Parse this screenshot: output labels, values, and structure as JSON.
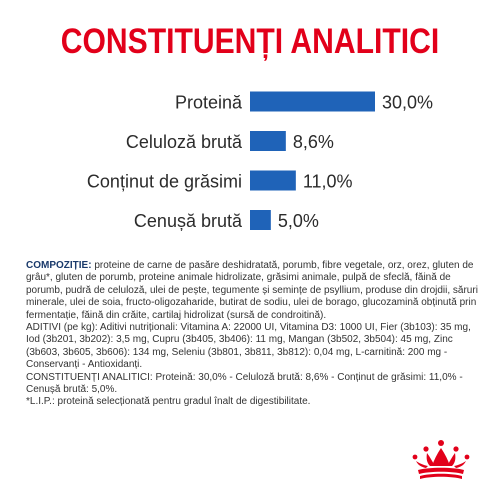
{
  "title": "CONSTITUENȚI ANALITICI",
  "colors": {
    "title": "#e2001a",
    "bar": "#1f63b8",
    "label": "#2b2b2b",
    "logo": "#e2001a"
  },
  "chart_data": {
    "type": "bar",
    "orientation": "horizontal",
    "categories": [
      "Proteină",
      "Celuloză brută",
      "Conținut de grăsimi",
      "Cenușă brută"
    ],
    "values": [
      30.0,
      8.6,
      11.0,
      5.0
    ],
    "value_labels": [
      "30,0%",
      "8,6%",
      "11,0%",
      "5,0%"
    ],
    "unit": "%",
    "xlim": [
      0,
      30
    ],
    "grid": false,
    "legend": "none"
  },
  "composition": {
    "label": "COMPOZIȚIE:",
    "text": " proteine de carne de pasăre deshidratată, porumb, fibre vegetale, orz, orez, gluten de grâu*, gluten de porumb, proteine animale hidrolizate, grăsimi animale, pulpă de sfeclă, făină de porumb, pudră de celuloză, ulei de pește, tegumente și semințe de psyllium, produse din drojdii, săruri minerale, ulei de soia, fructo-oligozaharide, butirat de sodiu, ulei de borago, glucozamină obținută prin fermentație, făină din crăite, cartilaj hidrolizat (sursă de condroitină).",
    "additives": "ADITIVI (pe kg): Aditivi nutriționali: Vitamina A: 22000 UI, Vitamina D3: 1000 UI, Fier (3b103): 35 mg, Iod (3b201, 3b202): 3,5 mg, Cupru (3b405, 3b406): 11 mg, Mangan (3b502, 3b504): 45 mg, Zinc (3b603, 3b605, 3b606): 134 mg, Seleniu (3b801, 3b811, 3b812): 0,04 mg, L-carnitină: 200 mg - Conservanți - Antioxidanți.",
    "analytical": "CONSTITUENȚI ANALITICI: Proteină: 30,0% - Celuloză brută: 8,6% - Conținut de grăsimi: 11,0% - Cenușă brută: 5,0%.",
    "footnote": "*L.I.P.: proteină selecționată pentru gradul înalt de digestibilitate."
  },
  "logo": {
    "name": "crown-logo"
  }
}
